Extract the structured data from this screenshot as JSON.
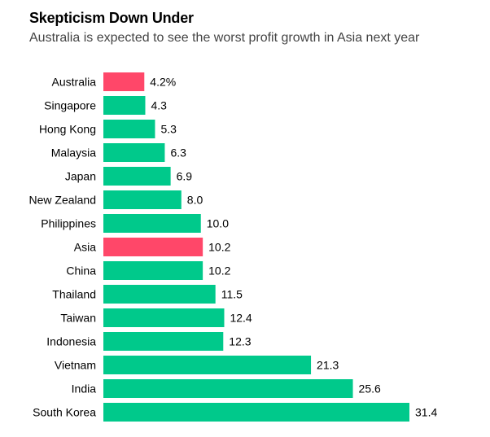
{
  "chart_data": {
    "type": "bar",
    "orientation": "horizontal",
    "title": "Skepticism Down Under",
    "subtitle": "Australia is expected to see the worst profit growth in Asia next year",
    "categories": [
      "Australia",
      "Singapore",
      "Hong Kong",
      "Malaysia",
      "Japan",
      "New Zealand",
      "Philippines",
      "Asia",
      "China",
      "Thailand",
      "Taiwan",
      "Indonesia",
      "Vietnam",
      "India",
      "South Korea"
    ],
    "values": [
      4.2,
      4.3,
      5.3,
      6.3,
      6.9,
      8.0,
      10.0,
      10.2,
      10.2,
      11.5,
      12.4,
      12.3,
      21.3,
      25.6,
      31.4
    ],
    "value_labels": [
      "4.2%",
      "4.3",
      "5.3",
      "6.3",
      "6.9",
      "8.0",
      "10.0",
      "10.2",
      "10.2",
      "11.5",
      "12.4",
      "12.3",
      "21.3",
      "25.6",
      "31.4"
    ],
    "highlighted": [
      "Australia",
      "Asia"
    ],
    "xlim": [
      0,
      31.4
    ],
    "xlabel": "",
    "ylabel": "",
    "grid": false,
    "legend": "none",
    "colors": {
      "default": "#00c98b",
      "highlight": "#ff4769"
    }
  }
}
